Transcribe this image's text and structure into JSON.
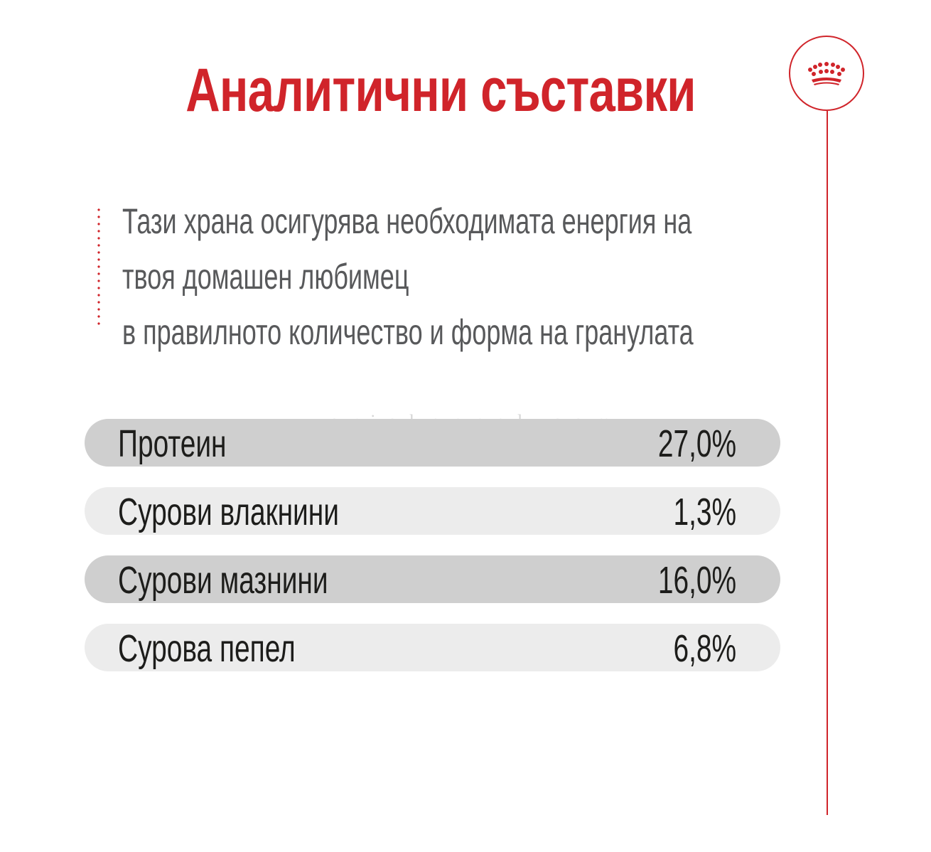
{
  "title": "Аналитични съставки",
  "intro": {
    "lines": [
      "Тази храна осигурява необходимата енергия на",
      "твоя домашен любимец",
      "в правилното количество и форма на гранулата"
    ]
  },
  "watermark": "ariakennel.com",
  "nutrients": [
    {
      "label": "Протеин",
      "value": "27,0%"
    },
    {
      "label": "Сурови влакнини",
      "value": "1,3%"
    },
    {
      "label": "Сурови мазнини",
      "value": "16,0%"
    },
    {
      "label": "Сурова пепел",
      "value": "6,8%"
    }
  ],
  "colors": {
    "accent": "#d0242a",
    "text": "#1d1d1b",
    "intro_text": "#58595b",
    "row_dark": "#cfcfcf",
    "row_light": "#ececec"
  },
  "icons": {
    "logo": "crown-icon"
  }
}
